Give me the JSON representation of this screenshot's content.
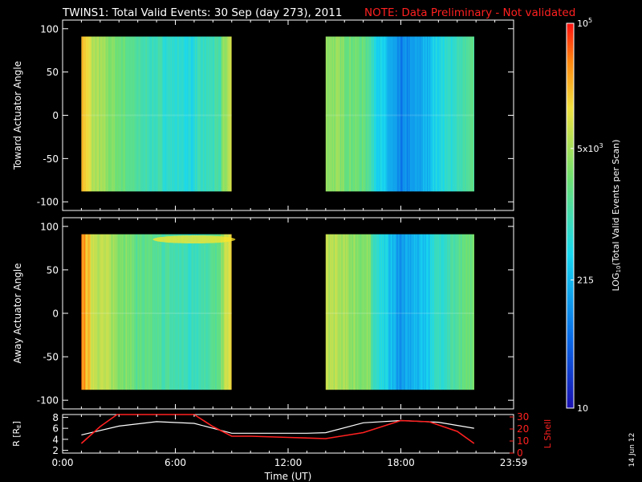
{
  "header": {
    "title": "TWINS1: Total Valid Events: 30 Sep (day 273), 2011",
    "note": "NOTE: Data Preliminary - Not validated"
  },
  "footer": {
    "date_stamp": "14 Jun 12"
  },
  "colors": {
    "background": "#000000",
    "axis": "#ffffff",
    "note": "#ff2020",
    "r_curve": "#ffffff",
    "lshell_curve": "#ff2020"
  },
  "chart_data": [
    {
      "type": "heatmap",
      "ylabel": "Toward Actuator Angle",
      "ylim": [
        -110,
        110
      ],
      "y_ticks": [
        "100",
        "50",
        "0",
        "-50",
        "-100"
      ],
      "xlim_hours": [
        0,
        24
      ],
      "x_ticks": [
        "0:00",
        "6:00",
        "12:00",
        "18:00",
        "23:59"
      ],
      "data_blocks_hours": [
        [
          1.0,
          9.0
        ],
        [
          14.0,
          21.9
        ]
      ],
      "angle_range": [
        -88,
        91
      ]
    },
    {
      "type": "heatmap",
      "ylabel": "Away Actuator Angle",
      "ylim": [
        -110,
        110
      ],
      "y_ticks": [
        "100",
        "50",
        "0",
        "-50",
        "-100"
      ],
      "xlim_hours": [
        0,
        24
      ],
      "x_ticks": [
        "0:00",
        "6:00",
        "12:00",
        "18:00",
        "23:59"
      ],
      "data_blocks_hours": [
        [
          1.0,
          9.0
        ],
        [
          14.0,
          21.9
        ]
      ],
      "angle_range": [
        -88,
        91
      ]
    },
    {
      "type": "line",
      "ylabel_left": "R [R",
      "ylabel_left_sub": "E",
      "ylabel_left_end": "]",
      "ylabel_right": "L Shell",
      "xlabel": "Time (UT)",
      "x_ticks": [
        "0:00",
        "6:00",
        "12:00",
        "18:00",
        "23:59"
      ],
      "y_ticks_left": [
        "8",
        "6",
        "4",
        "2"
      ],
      "y_ticks_right": [
        "30",
        "20",
        "10",
        "0"
      ],
      "ylim_left": [
        1.5,
        8.5
      ],
      "ylim_right": [
        0,
        32
      ],
      "series": [
        {
          "name": "R",
          "x": [
            1.0,
            3.0,
            5.0,
            7.0,
            9.0,
            11.0,
            13.0,
            14.0,
            16.0,
            18.0,
            20.0,
            21.9
          ],
          "y": [
            4.8,
            6.4,
            7.2,
            6.9,
            5.1,
            5.1,
            5.1,
            5.2,
            7.0,
            7.4,
            7.1,
            6.0
          ]
        },
        {
          "name": "L Shell",
          "x": [
            1.0,
            2.0,
            2.9,
            7.0,
            8.0,
            9.0,
            10.0,
            12.0,
            14.0,
            16.0,
            18.0,
            19.5,
            21.0,
            21.9
          ],
          "y": [
            8,
            22,
            32,
            32,
            22,
            14,
            14,
            13,
            12,
            17,
            27,
            26,
            18,
            8
          ]
        }
      ]
    }
  ],
  "colorbar": {
    "label": "LOG",
    "label_sub": "10",
    "label_rest": "(Total Valid Events per Scan)",
    "ticks": [
      {
        "base": "10",
        "sup": "5",
        "value": 100000
      },
      {
        "base": "5x10",
        "sup": "3",
        "value": 5000
      },
      {
        "base": "215",
        "sup": "",
        "value": 215
      },
      {
        "base": "10",
        "sup": "",
        "value": 10
      }
    ],
    "range": [
      10,
      100000
    ]
  }
}
